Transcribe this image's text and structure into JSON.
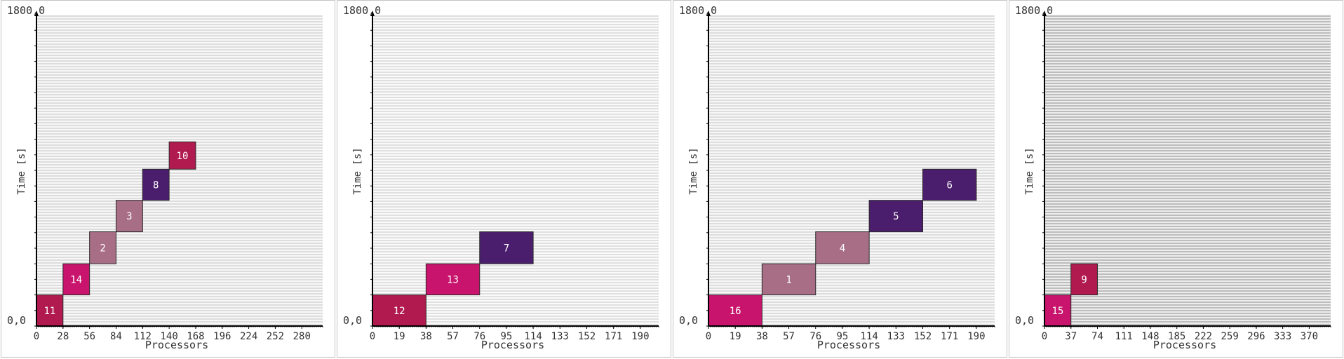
{
  "chart_data": [
    {
      "type": "gantt",
      "ylabel": "Time [s]",
      "xlabel": "Processors",
      "y_top_label": "1800,0",
      "y_bottom_label": "0,0",
      "ylim": [
        0,
        1800
      ],
      "xlim": [
        0,
        302
      ],
      "x_ticks": [
        "0",
        "28",
        "56",
        "84",
        "112",
        "140",
        "168",
        "196",
        "224",
        "252",
        "280"
      ],
      "x_tick_values": [
        0,
        28,
        56,
        84,
        112,
        140,
        168,
        196,
        224,
        252,
        280
      ],
      "jobs": [
        {
          "id": "11",
          "proc_start": 0,
          "procs": 28,
          "t_start": 0,
          "t_end": 180,
          "color": "#b01a4e"
        },
        {
          "id": "14",
          "proc_start": 28,
          "procs": 28,
          "t_start": 180,
          "t_end": 360,
          "color": "#c8146c"
        },
        {
          "id": "2",
          "proc_start": 56,
          "procs": 28,
          "t_start": 360,
          "t_end": 545,
          "color": "#a76e86"
        },
        {
          "id": "3",
          "proc_start": 84,
          "procs": 28,
          "t_start": 545,
          "t_end": 727,
          "color": "#a76e86"
        },
        {
          "id": "8",
          "proc_start": 112,
          "procs": 28,
          "t_start": 727,
          "t_end": 907,
          "color": "#4a1e6c"
        },
        {
          "id": "10",
          "proc_start": 140,
          "procs": 28,
          "t_start": 907,
          "t_end": 1065,
          "color": "#b01a4e"
        }
      ]
    },
    {
      "type": "gantt",
      "ylabel": "Time [s]",
      "xlabel": "Processors",
      "y_top_label": "1800,0",
      "y_bottom_label": "0,0",
      "ylim": [
        0,
        1800
      ],
      "xlim": [
        0,
        203
      ],
      "x_ticks": [
        "0",
        "19",
        "38",
        "57",
        "76",
        "95",
        "114",
        "133",
        "152",
        "171",
        "190"
      ],
      "x_tick_values": [
        0,
        19,
        38,
        57,
        76,
        95,
        114,
        133,
        152,
        171,
        190
      ],
      "jobs": [
        {
          "id": "12",
          "proc_start": 0,
          "procs": 38,
          "t_start": 0,
          "t_end": 180,
          "color": "#b01a4e"
        },
        {
          "id": "13",
          "proc_start": 38,
          "procs": 38,
          "t_start": 180,
          "t_end": 360,
          "color": "#c8146c"
        },
        {
          "id": "7",
          "proc_start": 76,
          "procs": 38,
          "t_start": 360,
          "t_end": 545,
          "color": "#4a1e6c"
        }
      ]
    },
    {
      "type": "gantt",
      "ylabel": "Time [s]",
      "xlabel": "Processors",
      "y_top_label": "1800,0",
      "y_bottom_label": "0,0",
      "ylim": [
        0,
        1800
      ],
      "xlim": [
        0,
        203
      ],
      "x_ticks": [
        "0",
        "19",
        "38",
        "57",
        "76",
        "95",
        "114",
        "133",
        "152",
        "171",
        "190"
      ],
      "x_tick_values": [
        0,
        19,
        38,
        57,
        76,
        95,
        114,
        133,
        152,
        171,
        190
      ],
      "jobs": [
        {
          "id": "16",
          "proc_start": 0,
          "procs": 38,
          "t_start": 0,
          "t_end": 180,
          "color": "#c8146c"
        },
        {
          "id": "1",
          "proc_start": 38,
          "procs": 38,
          "t_start": 180,
          "t_end": 360,
          "color": "#a76e86"
        },
        {
          "id": "4",
          "proc_start": 76,
          "procs": 38,
          "t_start": 360,
          "t_end": 545,
          "color": "#a76e86"
        },
        {
          "id": "5",
          "proc_start": 114,
          "procs": 38,
          "t_start": 545,
          "t_end": 727,
          "color": "#4a1e6c"
        },
        {
          "id": "6",
          "proc_start": 152,
          "procs": 38,
          "t_start": 727,
          "t_end": 907,
          "color": "#4a1e6c"
        }
      ]
    },
    {
      "type": "gantt",
      "ylabel": "Time [s]",
      "xlabel": "Processors",
      "y_top_label": "1800,0",
      "y_bottom_label": "0,0",
      "ylim": [
        0,
        1800
      ],
      "xlim": [
        0,
        400
      ],
      "x_ticks": [
        "0",
        "37",
        "74",
        "111",
        "148",
        "185",
        "222",
        "259",
        "296",
        "333",
        "370"
      ],
      "x_tick_values": [
        0,
        37,
        74,
        111,
        148,
        185,
        222,
        259,
        296,
        333,
        370
      ],
      "jobs": [
        {
          "id": "15",
          "proc_start": 0,
          "procs": 37,
          "t_start": 0,
          "t_end": 180,
          "color": "#c8146c"
        },
        {
          "id": "9",
          "proc_start": 37,
          "procs": 37,
          "t_start": 180,
          "t_end": 360,
          "color": "#b01a4e"
        }
      ]
    }
  ]
}
